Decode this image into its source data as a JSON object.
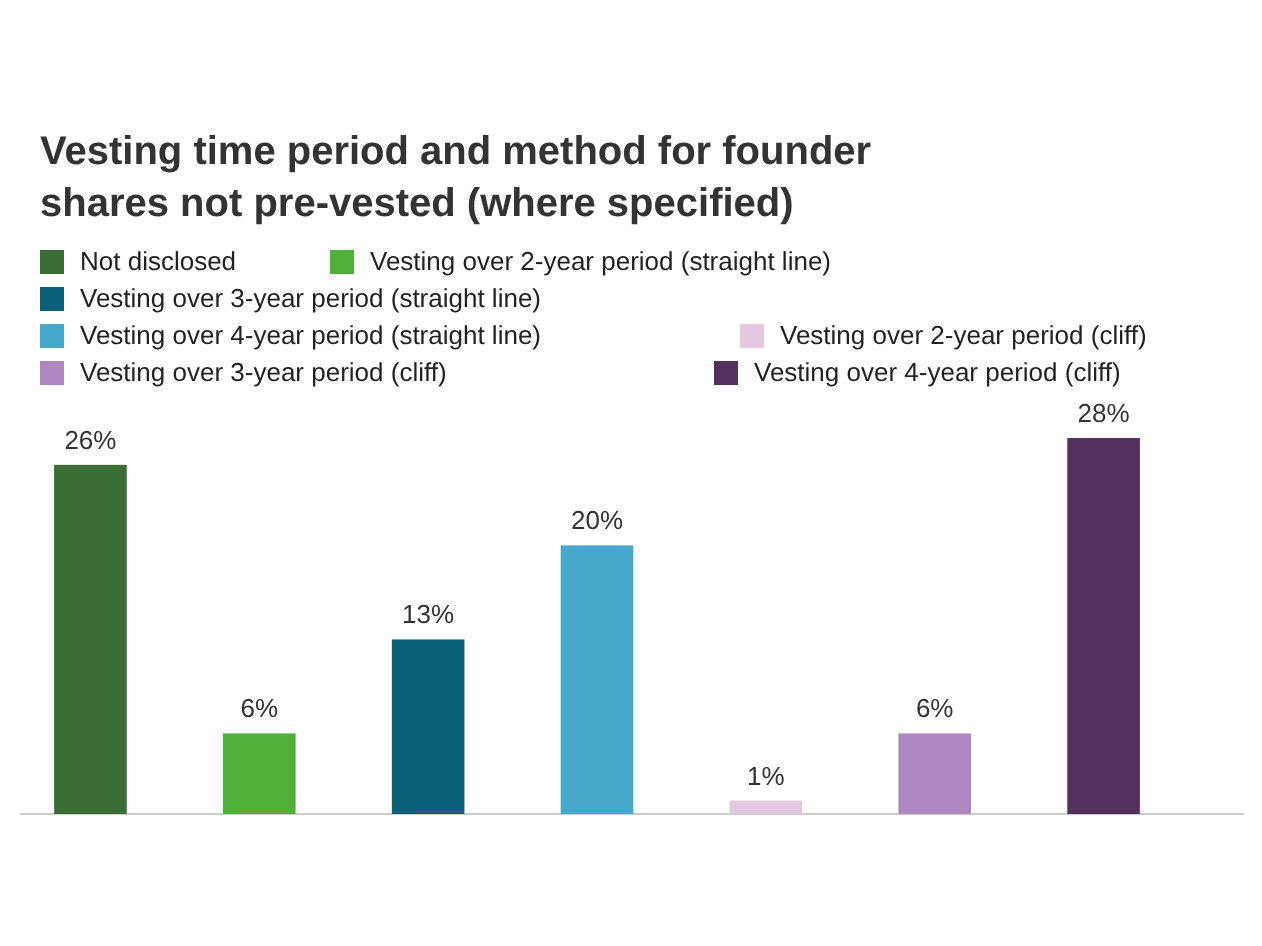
{
  "chart_data": {
    "type": "bar",
    "title": "Vesting time period and method for founder shares not pre-vested (where specified)",
    "categories": [
      null,
      null,
      null,
      null,
      null,
      null,
      null
    ],
    "legend": "top left",
    "data_labels": true,
    "stacked": true,
    "series": [
      {
        "name": "Not disclosed",
        "color": "#3a6e35",
        "values": [
          26,
          null,
          null,
          null,
          null,
          null,
          null
        ],
        "value_labels": [
          "26%",
          null,
          null,
          null,
          null,
          null,
          null
        ]
      },
      {
        "name": "Vesting over 2-year period (straight line)",
        "color": "#4fb03c",
        "values": [
          null,
          6,
          null,
          null,
          null,
          null,
          null
        ],
        "value_labels": [
          null,
          "6%",
          null,
          null,
          null,
          null,
          null
        ]
      },
      {
        "name": "Vesting over 3-year period (straight line)",
        "color": "#0c5f78",
        "values": [
          null,
          null,
          13,
          null,
          null,
          null,
          null
        ],
        "value_labels": [
          null,
          null,
          "13%",
          null,
          null,
          null,
          null
        ]
      },
      {
        "name": "Vesting over 4-year period (straight line)",
        "color": "#48a8cb",
        "values": [
          null,
          null,
          null,
          20,
          null,
          null,
          null
        ],
        "value_labels": [
          null,
          null,
          null,
          "20%",
          null,
          null,
          null
        ]
      },
      {
        "name": "Vesting over 2-year period (cliff)",
        "color": "#e3c8e0",
        "values": [
          null,
          null,
          null,
          null,
          1,
          null,
          null
        ],
        "value_labels": [
          null,
          null,
          null,
          null,
          "1%",
          null,
          null
        ]
      },
      {
        "name": "Vesting over 3-year period (cliff)",
        "color": "#ae86c0",
        "values": [
          null,
          null,
          null,
          null,
          null,
          6,
          null
        ],
        "value_labels": [
          null,
          null,
          null,
          null,
          null,
          "6%",
          null
        ]
      },
      {
        "name": "Vesting over 4-year period (cliff)",
        "color": "#54305e",
        "values": [
          null,
          null,
          null,
          null,
          null,
          null,
          28
        ],
        "value_labels": [
          null,
          null,
          null,
          null,
          null,
          null,
          "28%"
        ]
      }
    ]
  }
}
